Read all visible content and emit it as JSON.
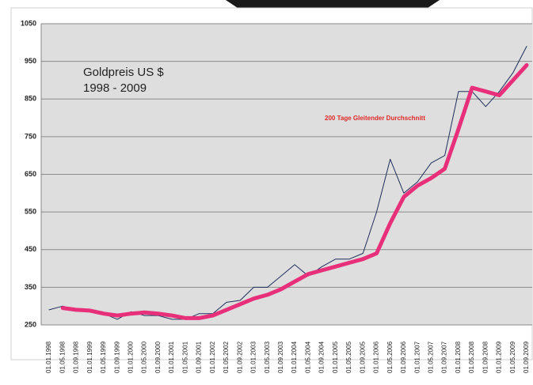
{
  "chart_data": {
    "type": "line",
    "title": "Goldpreis US $",
    "subtitle": "1998 - 2009",
    "categories": [
      "01.01.1998",
      "01.05.1998",
      "01.09.1998",
      "01.01.1999",
      "01.05.1999",
      "01.09.1999",
      "01.01.2000",
      "01.05.2000",
      "01.09.2000",
      "01.01.2001",
      "01.05.2001",
      "01.09.2001",
      "01.01.2002",
      "01.05.2002",
      "01.09.2002",
      "01.01.2003",
      "01.05.2003",
      "01.09.2003",
      "01.01.2004",
      "01.05.2004",
      "01.09.2004",
      "01.01.2005",
      "01.05.2005",
      "01.09.2005",
      "01.01.2006",
      "01.05.2006",
      "01.09.2006",
      "01.01.2007",
      "01.05.2007",
      "01.09.2007",
      "01.01.2008",
      "01.05.2008",
      "01.09.2008",
      "01.01.2009",
      "01.05.2009",
      "01.09.2009"
    ],
    "series": [
      {
        "color": "#1f2d5a",
        "width": 1,
        "values": [
          290,
          300,
          290,
          287,
          280,
          265,
          285,
          275,
          275,
          265,
          265,
          280,
          280,
          310,
          315,
          350,
          350,
          380,
          410,
          380,
          405,
          425,
          425,
          440,
          550,
          690,
          600,
          630,
          680,
          700,
          870,
          870,
          830,
          870,
          920,
          990
        ]
      },
      {
        "name": "200 Tage Gleitender Durchschnitt",
        "color": "#e8307a",
        "width": 5,
        "values": [
          null,
          295,
          290,
          288,
          280,
          275,
          280,
          283,
          280,
          275,
          268,
          268,
          275,
          290,
          305,
          320,
          330,
          345,
          365,
          385,
          395,
          405,
          415,
          425,
          440,
          520,
          590,
          620,
          640,
          665,
          770,
          880,
          870,
          860,
          900,
          940
        ]
      }
    ],
    "ylim": [
      250,
      1050
    ],
    "yticks": [
      250,
      350,
      450,
      550,
      650,
      750,
      850,
      950,
      1050
    ],
    "grid": true
  }
}
